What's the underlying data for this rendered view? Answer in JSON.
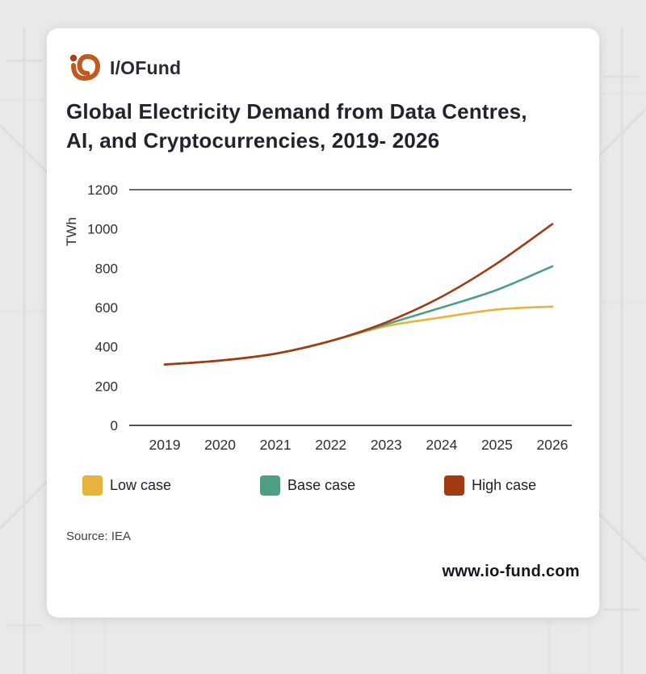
{
  "page": {
    "background_color": "#e9e9ea",
    "source_note": "Source: IEA",
    "website": "www.io-fund.com"
  },
  "logo": {
    "text": "I/OFund",
    "mark_color": "#c05a1e"
  },
  "title": {
    "line1": "Global Electricity Demand from Data Centres,",
    "line2": "AI, and Cryptocurrencies, 2019- 2026"
  },
  "chart_data": {
    "type": "line",
    "title": "Global Electricity Demand from Data Centres, AI, and Cryptocurrencies, 2019-2026",
    "ylabel": "TWh",
    "ylim": [
      0,
      1200
    ],
    "yticks": [
      0,
      200,
      400,
      600,
      800,
      1000,
      1200
    ],
    "x": [
      "2019",
      "2020",
      "2021",
      "2022",
      "2023",
      "2024",
      "2025",
      "2026"
    ],
    "grid": false,
    "legend_position": "bottom",
    "axis_color": "#3a3a3a",
    "tick_label_color": "#2e2e33",
    "series": [
      {
        "name": "Low case",
        "color": "#e8b33c",
        "values": [
          310,
          330,
          365,
          430,
          505,
          550,
          590,
          605
        ]
      },
      {
        "name": "Base case",
        "color": "#4d9f81",
        "values": [
          310,
          330,
          365,
          430,
          515,
          600,
          690,
          810
        ]
      },
      {
        "name": "High case",
        "color": "#a23b13",
        "values": [
          310,
          330,
          365,
          430,
          525,
          655,
          825,
          1025
        ]
      }
    ]
  }
}
